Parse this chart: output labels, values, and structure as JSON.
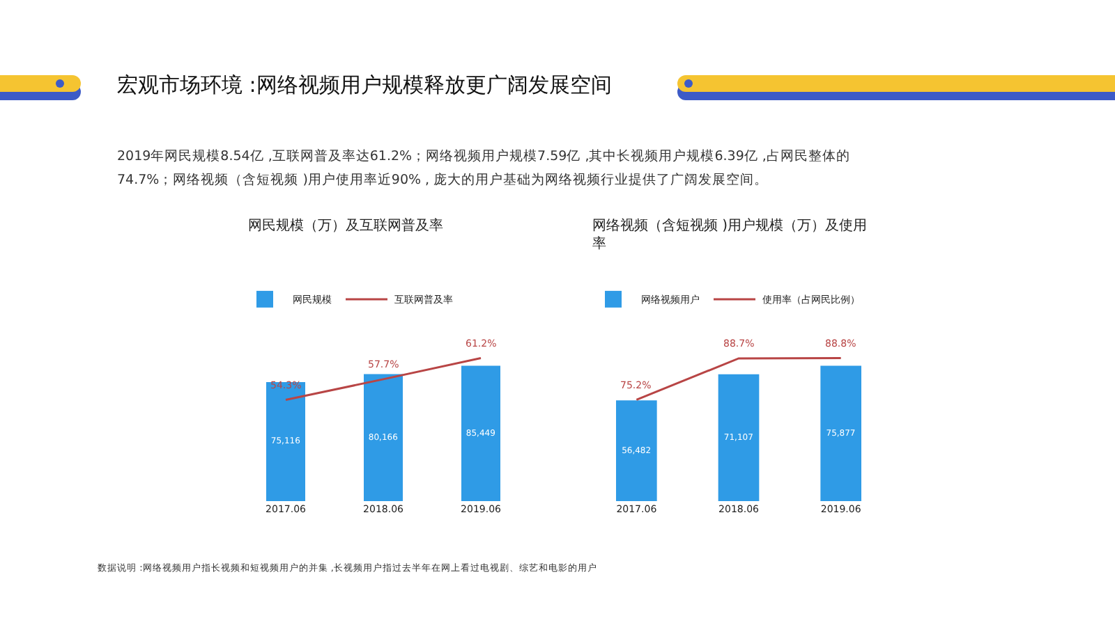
{
  "chart_data": [
    {
      "type": "bar",
      "title": "网民规模（万）及互联网普及率",
      "categories": [
        "2017.06",
        "2018.06",
        "2019.06"
      ],
      "legend": "top left",
      "tick_labels": "x",
      "annotations": [
        "宏观市场环境 :网络视频用户规模释放更广阔发展空间",
        "2019年网民规模8.54亿 ,互联网普及率达61.2%；网络视频用户规模7.59亿 ,其中长视频用户规模6.39亿 ,占网民整体的74.7%；网络视频（含短视频 )用户使用率近90% , 庞大的用户基础为网络视频行业提供了广阔发展空间。",
        "数据说明 :网络视频用户指长视频和短视频用户的并集 ,长视频用户指过去半年在网上看过电视剧、综艺和电影的用户"
      ],
      "series": [
        {
          "name": "网民规模",
          "color": "#2f9be6",
          "values": [
            75116,
            80166,
            85449
          ],
          "value_labels": [
            "75,116",
            "80,166",
            "85,449"
          ]
        },
        {
          "name": "互联网普及率",
          "type": "line",
          "axis": "y2",
          "color": "#b84545",
          "values": [
            54.3,
            57.7,
            61.2
          ],
          "value_labels": [
            "54.3%",
            "57.7%",
            "61.2%"
          ]
        }
      ]
    },
    {
      "type": "bar",
      "title": "网络视频（含短视频 )用户规模（万）及使用率",
      "categories": [
        "2017.06",
        "2018.06",
        "2019.06"
      ],
      "legend": "top left",
      "tick_labels": "x",
      "series": [
        {
          "name": "网络视频用户",
          "color": "#2f9be6",
          "values": [
            56482,
            71107,
            75877
          ],
          "value_labels": [
            "56,482",
            "71,107",
            "75,877"
          ]
        },
        {
          "name": "使用率（占网民比例）",
          "type": "line",
          "axis": "y2",
          "color": "#b84545",
          "values": [
            75.2,
            88.7,
            88.8
          ],
          "value_labels": [
            "75.2%",
            "88.7%",
            "88.8%"
          ]
        }
      ]
    }
  ]
}
